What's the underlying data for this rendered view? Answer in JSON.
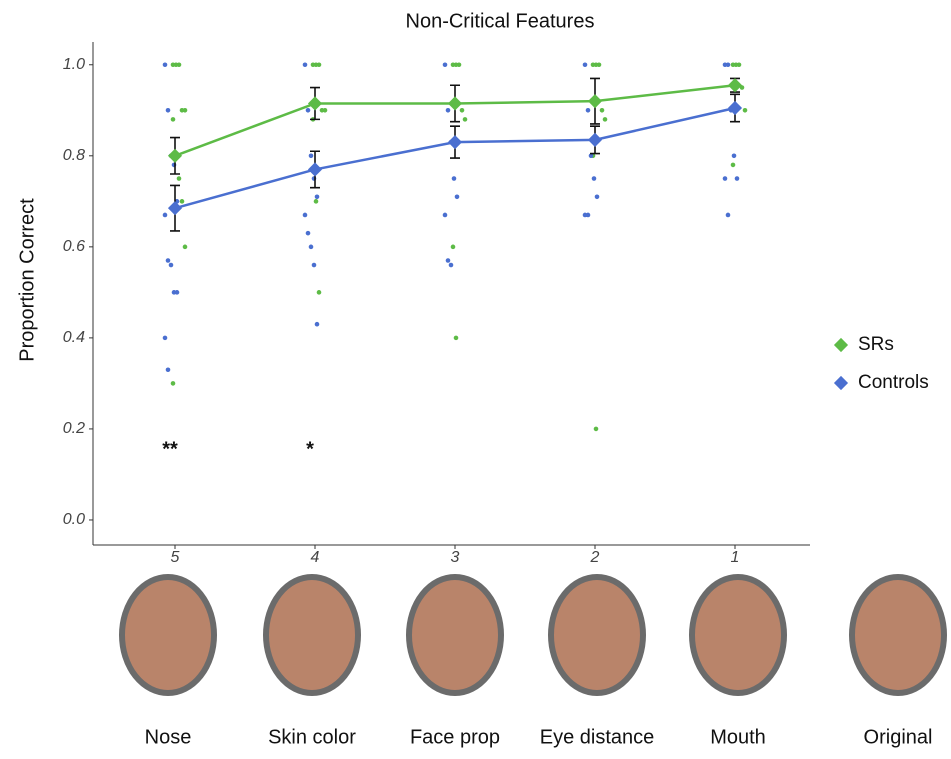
{
  "chart_data": {
    "type": "line",
    "title": "Non-Critical Features",
    "y_label": "Proportion Correct",
    "categories": [
      "5",
      "4",
      "3",
      "2",
      "1"
    ],
    "image_labels": [
      "Nose",
      "Skin color",
      "Face prop",
      "Eye distance",
      "Mouth",
      "Original"
    ],
    "annotations": [
      "**",
      "*"
    ],
    "ylim": [
      -0.055,
      1.05
    ],
    "yticks": [
      {
        "value": 0,
        "label": "0.0"
      },
      0.2,
      0.4,
      0.6,
      0.8,
      {
        "value": 1,
        "label": "1.0"
      }
    ],
    "grid": false,
    "legend": "right",
    "series": [
      {
        "name": "SRs",
        "color": "#5dbb46",
        "values": [
          0.8,
          0.915,
          0.915,
          0.92,
          0.955
        ],
        "errors": [
          0.04,
          0.035,
          0.04,
          0.05,
          0.015
        ],
        "points": [
          [
            1.0,
            1.0,
            1.0,
            0.9,
            0.9,
            0.88,
            0.8,
            0.75,
            0.7,
            0.6,
            0.3
          ],
          [
            1.0,
            1.0,
            1.0,
            0.9,
            0.9,
            0.88,
            0.7,
            0.5
          ],
          [
            1.0,
            1.0,
            1.0,
            0.9,
            0.88,
            0.6,
            0.4
          ],
          [
            1.0,
            1.0,
            1.0,
            0.9,
            0.88,
            0.8,
            0.2
          ],
          [
            1.0,
            1.0,
            1.0,
            0.95,
            0.9,
            0.78
          ]
        ]
      },
      {
        "name": "Controls",
        "color": "#4a6fd0",
        "values": [
          0.685,
          0.77,
          0.83,
          0.835,
          0.905
        ],
        "errors": [
          0.05,
          0.04,
          0.035,
          0.03,
          0.03
        ],
        "points": [
          [
            1.0,
            0.9,
            0.8,
            0.78,
            0.7,
            0.67,
            0.57,
            0.56,
            0.5,
            0.5,
            0.4,
            0.33
          ],
          [
            1.0,
            0.9,
            0.8,
            0.75,
            0.71,
            0.67,
            0.63,
            0.6,
            0.56,
            0.43
          ],
          [
            1.0,
            0.9,
            0.83,
            0.75,
            0.71,
            0.67,
            0.57,
            0.56
          ],
          [
            1.0,
            0.9,
            0.8,
            0.75,
            0.71,
            0.67,
            0.67
          ],
          [
            1.0,
            1.0,
            0.9,
            0.8,
            0.75,
            0.75,
            0.67
          ]
        ]
      }
    ]
  }
}
